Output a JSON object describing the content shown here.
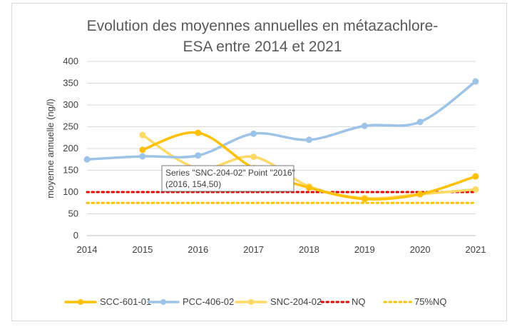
{
  "chart_data": {
    "type": "line",
    "title_lines": [
      "Evolution des moyennes annuelles en métazachlore-",
      "ESA entre 2014 et 2021"
    ],
    "xlabel": "",
    "ylabel": "moyenne annuelle (ng/l)",
    "x_ticks": [
      "2014",
      "2015",
      "2016",
      "2017",
      "2018",
      "2019",
      "2020",
      "2021"
    ],
    "y_ticks": [
      "0",
      "50",
      "100",
      "150",
      "200",
      "250",
      "300",
      "350",
      "400"
    ],
    "xlim": [
      2014,
      2021
    ],
    "ylim": [
      0,
      400
    ],
    "smooth": true,
    "legend_position": "bottom",
    "series": [
      {
        "name": "SCC-601-01",
        "color": "#FFC000",
        "markers": true,
        "dash": false,
        "points": [
          [
            2015,
            197
          ],
          [
            2016,
            236
          ],
          [
            2017,
            155
          ],
          [
            2018,
            110
          ],
          [
            2019,
            84
          ],
          [
            2020,
            95
          ],
          [
            2021,
            136
          ]
        ]
      },
      {
        "name": "PCC-406-02",
        "color": "#9DC3E6",
        "markers": true,
        "dash": false,
        "points": [
          [
            2014,
            175
          ],
          [
            2015,
            182
          ],
          [
            2016,
            184
          ],
          [
            2017,
            234
          ],
          [
            2018,
            220
          ],
          [
            2019,
            252
          ],
          [
            2020,
            261
          ],
          [
            2021,
            354
          ]
        ]
      },
      {
        "name": "SNC-204-02",
        "color": "#FFD966",
        "markers": true,
        "dash": false,
        "points": [
          [
            2015,
            231
          ],
          [
            2016,
            154.5
          ],
          [
            2017,
            181
          ],
          [
            2018,
            113
          ],
          [
            2019,
            86
          ],
          [
            2020,
            95
          ],
          [
            2021,
            106
          ]
        ]
      },
      {
        "name": "NQ",
        "color": "#E00000",
        "markers": false,
        "dash": true,
        "points": [
          [
            2014,
            100
          ],
          [
            2021,
            100
          ]
        ]
      },
      {
        "name": "75%NQ",
        "color": "#FFC000",
        "markers": false,
        "dash": true,
        "points": [
          [
            2014,
            75
          ],
          [
            2021,
            75
          ]
        ]
      }
    ],
    "tooltip": {
      "line1": "Series \"SNC-204-02\" Point \"2016\"",
      "line2": "(2016, 154,50)"
    }
  }
}
